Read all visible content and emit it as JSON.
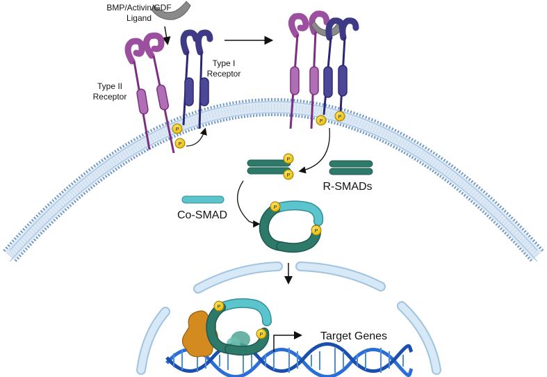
{
  "labels": {
    "ligand_line1": "BMP/Activin/GDF",
    "ligand_line2": "Ligand",
    "type1_line1": "Type I",
    "type1_line2": "Receptor",
    "type2_line1": "Type II",
    "type2_line2": "Receptor",
    "r_smads": "R-SMADs",
    "co_smad": "Co-SMAD",
    "target_genes": "Target Genes",
    "phospho": "P"
  },
  "colors": {
    "membrane": "#8aaed4",
    "type2_receptor": "#9b4f9e",
    "type1_receptor": "#3f3a86",
    "ligand": "#8a8a8a",
    "r_smad": "#2e7a6a",
    "co_smad": "#5cc4cc",
    "phosphate": "#f7d21e",
    "nuclear_envelope": "#c9dff0",
    "dna": "#2b6fd6",
    "cofactor": "#d38a1e"
  }
}
